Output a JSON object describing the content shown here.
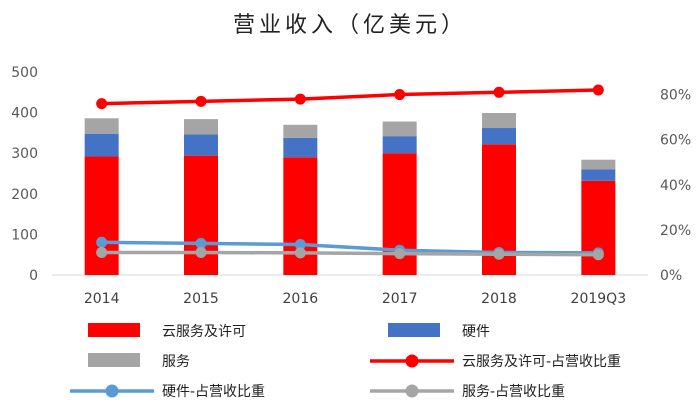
{
  "chart_data": {
    "type": "bar",
    "title": "营业收入（亿美元）",
    "categories": [
      "2014",
      "2015",
      "2016",
      "2017",
      "2018",
      "2019Q3"
    ],
    "y_left": {
      "range": [
        0,
        500
      ],
      "ticks": [
        "0",
        "100",
        "200",
        "300",
        "400",
        "500"
      ]
    },
    "y_right": {
      "range": [
        0,
        0.9
      ],
      "ticks": [
        "0%",
        "20%",
        "40%",
        "60%",
        "80%"
      ]
    },
    "bar_series": [
      {
        "name": "云服务及许可",
        "color": "#ff0000",
        "values": [
          292,
          294,
          290,
          300,
          322,
          232
        ]
      },
      {
        "name": "硬件",
        "color": "#4472c4",
        "values": [
          56,
          52,
          48,
          42,
          40,
          28
        ]
      },
      {
        "name": "服务",
        "color": "#a5a5a5",
        "values": [
          38,
          38,
          32,
          36,
          37,
          24
        ]
      }
    ],
    "line_series": [
      {
        "name": "云服务及许可-占营收比重",
        "color": "#ff0000",
        "values": [
          0.76,
          0.77,
          0.78,
          0.8,
          0.81,
          0.82
        ]
      },
      {
        "name": "硬件-占营收比重",
        "color": "#5b9bd5",
        "values": [
          0.145,
          0.14,
          0.135,
          0.11,
          0.1,
          0.098
        ]
      },
      {
        "name": "服务-占营收比重",
        "color": "#a5a5a5",
        "values": [
          0.1,
          0.1,
          0.098,
          0.095,
          0.092,
          0.09
        ]
      }
    ],
    "legend": [
      {
        "label": "云服务及许可",
        "kind": "bar",
        "color": "#ff0000"
      },
      {
        "label": "硬件",
        "kind": "bar",
        "color": "#4472c4"
      },
      {
        "label": "服务",
        "kind": "bar",
        "color": "#a5a5a5"
      },
      {
        "label": "云服务及许可-占营收比重",
        "kind": "line",
        "color": "#ff0000"
      },
      {
        "label": "硬件-占营收比重",
        "kind": "line",
        "color": "#5b9bd5"
      },
      {
        "label": "服务-占营收比重",
        "kind": "line",
        "color": "#a5a5a5"
      }
    ],
    "legend_position": "bottom",
    "grid": false
  }
}
